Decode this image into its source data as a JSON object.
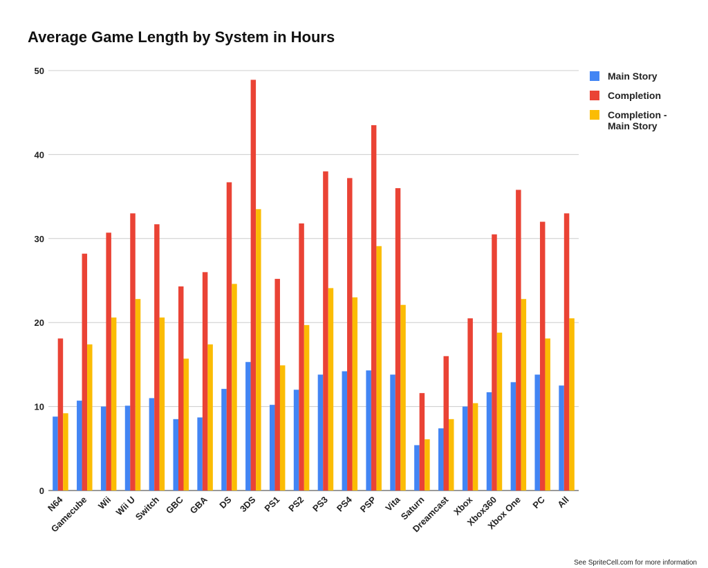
{
  "chart_data": {
    "type": "bar",
    "title": "Average Game Length by System in Hours",
    "footnote": "See SpriteCell.com for more information",
    "categories": [
      "N64",
      "Gamecube",
      "Wii",
      "Wii U",
      "Switch",
      "GBC",
      "GBA",
      "DS",
      "3DS",
      "PS1",
      "PS2",
      "PS3",
      "PS4",
      "PSP",
      "Vita",
      "Saturn",
      "Dreamcast",
      "Xbox",
      "Xbox360",
      "Xbox One",
      "PC",
      "All"
    ],
    "series": [
      {
        "name": "Main Story",
        "color": "#4285f4",
        "values": [
          8.8,
          10.7,
          10.0,
          10.1,
          11.0,
          8.5,
          8.7,
          12.1,
          15.3,
          10.2,
          12.0,
          13.8,
          14.2,
          14.3,
          13.8,
          5.4,
          7.4,
          10.0,
          11.7,
          12.9,
          13.8,
          12.5
        ]
      },
      {
        "name": "Completion",
        "color": "#ea4335",
        "values": [
          18.1,
          28.2,
          30.7,
          33.0,
          31.7,
          24.3,
          26.0,
          36.7,
          48.9,
          25.2,
          31.8,
          38.0,
          37.2,
          43.5,
          36.0,
          11.6,
          16.0,
          20.5,
          30.5,
          35.8,
          32.0,
          33.0
        ]
      },
      {
        "name": "Completion - Main Story",
        "color": "#fbbc04",
        "values": [
          9.2,
          17.4,
          20.6,
          22.8,
          20.6,
          15.7,
          17.4,
          24.6,
          33.5,
          14.9,
          19.7,
          24.1,
          23.0,
          29.1,
          22.1,
          6.1,
          8.5,
          10.4,
          18.8,
          22.8,
          18.1,
          20.5
        ]
      }
    ],
    "ylim": [
      0,
      50
    ],
    "yticks": [
      0,
      10,
      20,
      30,
      40,
      50
    ],
    "grid": true,
    "legend": "right"
  }
}
